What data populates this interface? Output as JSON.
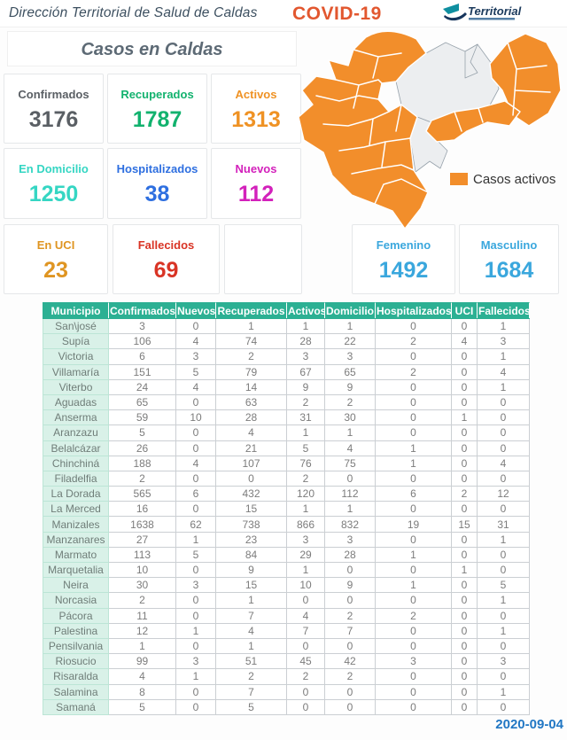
{
  "header": {
    "title": "Dirección Territorial de Salud de Caldas",
    "covid_label": "COVID-19",
    "logo_text": "Territorial"
  },
  "subtitle": "Casos en Caldas",
  "stats": [
    {
      "id": "confirmados",
      "label": "Confirmados",
      "value": "3176",
      "color": "#5a5f64"
    },
    {
      "id": "recuperados",
      "label": "Recuperados",
      "value": "1787",
      "color": "#12b26e"
    },
    {
      "id": "activos",
      "label": "Activos",
      "value": "1313",
      "color": "#ef9224"
    },
    {
      "id": "domicilio",
      "label": "En Domicilio",
      "value": "1250",
      "color": "#35d6c3"
    },
    {
      "id": "hospitalizados",
      "label": "Hospitalizados",
      "value": "38",
      "color": "#2e6fe0"
    },
    {
      "id": "nuevos",
      "label": "Nuevos",
      "value": "112",
      "color": "#d321bb"
    },
    {
      "id": "uci",
      "label": "En UCI",
      "value": "23",
      "color": "#df9522"
    },
    {
      "id": "fallecidos",
      "label": "Fallecidos",
      "value": "69",
      "color": "#d93425"
    },
    {
      "id": "femenino",
      "label": "Femenino",
      "value": "1492",
      "color": "#3aa7dd"
    },
    {
      "id": "masculino",
      "label": "Masculino",
      "value": "1684",
      "color": "#3aa7dd"
    }
  ],
  "map": {
    "legend_label": "Casos activos",
    "active_color": "#f28e2b",
    "inactive_color": "#eceef0"
  },
  "table": {
    "columns": [
      "Municipio",
      "Confirmados",
      "Nuevos",
      "Recuperados",
      "Activos",
      "Domicilio",
      "Hospitalizados",
      "UCI",
      "Fallecidos"
    ],
    "rows": [
      [
        "San\\josé",
        3,
        0,
        1,
        1,
        1,
        0,
        0,
        1
      ],
      [
        "Supía",
        106,
        4,
        74,
        28,
        22,
        2,
        4,
        3
      ],
      [
        "Victoria",
        6,
        3,
        2,
        3,
        3,
        0,
        0,
        1
      ],
      [
        "Villamaría",
        151,
        5,
        79,
        67,
        65,
        2,
        0,
        4
      ],
      [
        "Viterbo",
        24,
        4,
        14,
        9,
        9,
        0,
        0,
        1
      ],
      [
        "Aguadas",
        65,
        0,
        63,
        2,
        2,
        0,
        0,
        0
      ],
      [
        "Anserma",
        59,
        10,
        28,
        31,
        30,
        0,
        1,
        0
      ],
      [
        "Aranzazu",
        5,
        0,
        4,
        1,
        1,
        0,
        0,
        0
      ],
      [
        "Belalcázar",
        26,
        0,
        21,
        5,
        4,
        1,
        0,
        0
      ],
      [
        "Chinchiná",
        188,
        4,
        107,
        76,
        75,
        1,
        0,
        4
      ],
      [
        "Filadelfia",
        2,
        0,
        0,
        2,
        0,
        0,
        0,
        0
      ],
      [
        "La Dorada",
        565,
        6,
        432,
        120,
        112,
        6,
        2,
        12
      ],
      [
        "La Merced",
        16,
        0,
        15,
        1,
        1,
        0,
        0,
        0
      ],
      [
        "Manizales",
        1638,
        62,
        738,
        866,
        832,
        19,
        15,
        31
      ],
      [
        "Manzanares",
        27,
        1,
        23,
        3,
        3,
        0,
        0,
        1
      ],
      [
        "Marmato",
        113,
        5,
        84,
        29,
        28,
        1,
        0,
        0
      ],
      [
        "Marquetalia",
        10,
        0,
        9,
        1,
        0,
        0,
        1,
        0
      ],
      [
        "Neira",
        30,
        3,
        15,
        10,
        9,
        1,
        0,
        5
      ],
      [
        "Norcasia",
        2,
        0,
        1,
        0,
        0,
        0,
        0,
        1
      ],
      [
        "Pácora",
        11,
        0,
        7,
        4,
        2,
        2,
        0,
        0
      ],
      [
        "Palestina",
        12,
        1,
        4,
        7,
        7,
        0,
        0,
        1
      ],
      [
        "Pensilvania",
        1,
        0,
        1,
        0,
        0,
        0,
        0,
        0
      ],
      [
        "Riosucio",
        99,
        3,
        51,
        45,
        42,
        3,
        0,
        3
      ],
      [
        "Risaralda",
        4,
        1,
        2,
        2,
        2,
        0,
        0,
        0
      ],
      [
        "Salamina",
        8,
        0,
        7,
        0,
        0,
        0,
        0,
        1
      ],
      [
        "Samaná",
        5,
        0,
        5,
        0,
        0,
        0,
        0,
        0
      ]
    ]
  },
  "footer": {
    "date": "2020-09-04"
  }
}
